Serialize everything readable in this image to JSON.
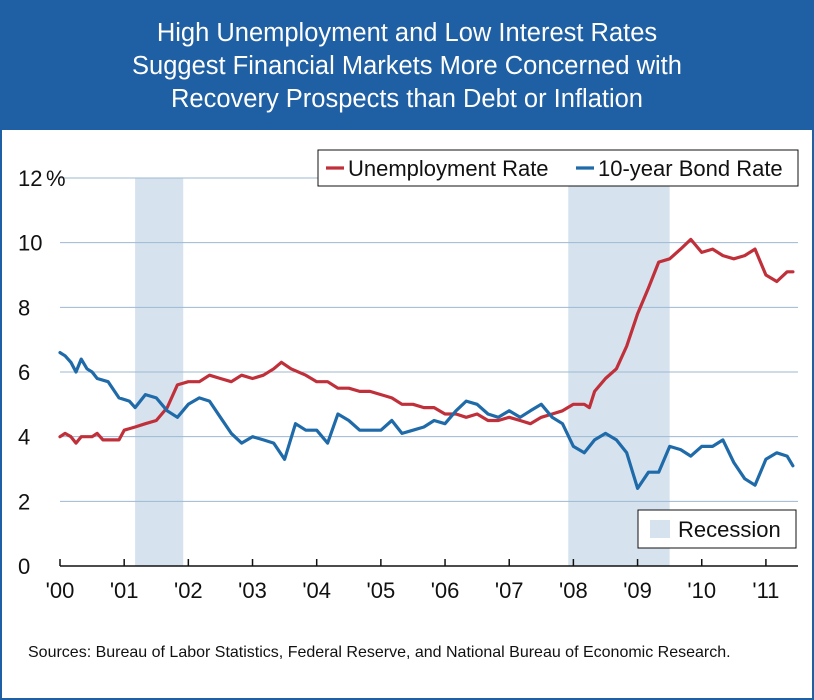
{
  "header": {
    "title_lines": [
      "High Unemployment and Low Interest Rates",
      "Suggest Financial Markets More Concerned with",
      "Recovery Prospects than Debt or Inflation"
    ]
  },
  "colors": {
    "header_bg": "#1f5fa3",
    "unemployment": "#c0303a",
    "bond": "#1f6aa8",
    "recession": "#d6e3ef",
    "grid": "#9db8d2"
  },
  "chart_data": {
    "type": "line",
    "y_unit_label": "%",
    "ylim": [
      0,
      12
    ],
    "y_ticks": [
      0,
      2,
      4,
      6,
      8,
      10,
      12
    ],
    "y_tick_labels": [
      "0",
      "2",
      "4",
      "6",
      "8",
      "10",
      "12"
    ],
    "x_range": [
      2000.0,
      2011.5
    ],
    "x_tick_values": [
      2000,
      2001,
      2002,
      2003,
      2004,
      2005,
      2006,
      2007,
      2008,
      2009,
      2010,
      2011
    ],
    "x_tick_labels": [
      "'00",
      "'01",
      "'02",
      "'03",
      "'04",
      "'05",
      "'06",
      "'07",
      "'08",
      "'09",
      "'10",
      "'11"
    ],
    "grid": "horizontal",
    "legend_position": "top-right",
    "recessions": [
      {
        "start": 2001.17,
        "end": 2001.92
      },
      {
        "start": 2007.92,
        "end": 2009.5
      }
    ],
    "recession_legend_label": "Recession",
    "series": [
      {
        "name": "Unemployment Rate",
        "color_key": "unemployment",
        "points": [
          [
            2000.0,
            4.0
          ],
          [
            2000.08,
            4.1
          ],
          [
            2000.17,
            4.0
          ],
          [
            2000.25,
            3.8
          ],
          [
            2000.33,
            4.0
          ],
          [
            2000.42,
            4.0
          ],
          [
            2000.5,
            4.0
          ],
          [
            2000.58,
            4.1
          ],
          [
            2000.67,
            3.9
          ],
          [
            2000.83,
            3.9
          ],
          [
            2000.92,
            3.9
          ],
          [
            2001.0,
            4.2
          ],
          [
            2001.17,
            4.3
          ],
          [
            2001.33,
            4.4
          ],
          [
            2001.5,
            4.5
          ],
          [
            2001.67,
            4.9
          ],
          [
            2001.83,
            5.6
          ],
          [
            2002.0,
            5.7
          ],
          [
            2002.17,
            5.7
          ],
          [
            2002.33,
            5.9
          ],
          [
            2002.5,
            5.8
          ],
          [
            2002.67,
            5.7
          ],
          [
            2002.83,
            5.9
          ],
          [
            2003.0,
            5.8
          ],
          [
            2003.17,
            5.9
          ],
          [
            2003.33,
            6.1
          ],
          [
            2003.45,
            6.3
          ],
          [
            2003.6,
            6.1
          ],
          [
            2003.83,
            5.9
          ],
          [
            2004.0,
            5.7
          ],
          [
            2004.17,
            5.7
          ],
          [
            2004.33,
            5.5
          ],
          [
            2004.5,
            5.5
          ],
          [
            2004.67,
            5.4
          ],
          [
            2004.83,
            5.4
          ],
          [
            2005.0,
            5.3
          ],
          [
            2005.17,
            5.2
          ],
          [
            2005.33,
            5.0
          ],
          [
            2005.5,
            5.0
          ],
          [
            2005.67,
            4.9
          ],
          [
            2005.83,
            4.9
          ],
          [
            2006.0,
            4.7
          ],
          [
            2006.17,
            4.7
          ],
          [
            2006.33,
            4.6
          ],
          [
            2006.5,
            4.7
          ],
          [
            2006.67,
            4.5
          ],
          [
            2006.83,
            4.5
          ],
          [
            2007.0,
            4.6
          ],
          [
            2007.17,
            4.5
          ],
          [
            2007.33,
            4.4
          ],
          [
            2007.5,
            4.6
          ],
          [
            2007.67,
            4.7
          ],
          [
            2007.83,
            4.8
          ],
          [
            2008.0,
            5.0
          ],
          [
            2008.17,
            5.0
          ],
          [
            2008.25,
            4.9
          ],
          [
            2008.33,
            5.4
          ],
          [
            2008.5,
            5.8
          ],
          [
            2008.67,
            6.1
          ],
          [
            2008.83,
            6.8
          ],
          [
            2009.0,
            7.8
          ],
          [
            2009.17,
            8.6
          ],
          [
            2009.33,
            9.4
          ],
          [
            2009.5,
            9.5
          ],
          [
            2009.67,
            9.8
          ],
          [
            2009.83,
            10.1
          ],
          [
            2010.0,
            9.7
          ],
          [
            2010.17,
            9.8
          ],
          [
            2010.33,
            9.6
          ],
          [
            2010.5,
            9.5
          ],
          [
            2010.67,
            9.6
          ],
          [
            2010.83,
            9.8
          ],
          [
            2011.0,
            9.0
          ],
          [
            2011.17,
            8.8
          ],
          [
            2011.33,
            9.1
          ],
          [
            2011.42,
            9.1
          ]
        ]
      },
      {
        "name": "10-year Bond Rate",
        "color_key": "bond",
        "points": [
          [
            2000.0,
            6.6
          ],
          [
            2000.08,
            6.5
          ],
          [
            2000.17,
            6.3
          ],
          [
            2000.25,
            6.0
          ],
          [
            2000.33,
            6.4
          ],
          [
            2000.42,
            6.1
          ],
          [
            2000.5,
            6.0
          ],
          [
            2000.58,
            5.8
          ],
          [
            2000.75,
            5.7
          ],
          [
            2000.92,
            5.2
          ],
          [
            2001.08,
            5.1
          ],
          [
            2001.17,
            4.9
          ],
          [
            2001.33,
            5.3
          ],
          [
            2001.5,
            5.2
          ],
          [
            2001.67,
            4.8
          ],
          [
            2001.83,
            4.6
          ],
          [
            2002.0,
            5.0
          ],
          [
            2002.17,
            5.2
          ],
          [
            2002.33,
            5.1
          ],
          [
            2002.5,
            4.6
          ],
          [
            2002.67,
            4.1
          ],
          [
            2002.83,
            3.8
          ],
          [
            2003.0,
            4.0
          ],
          [
            2003.17,
            3.9
          ],
          [
            2003.33,
            3.8
          ],
          [
            2003.5,
            3.3
          ],
          [
            2003.67,
            4.4
          ],
          [
            2003.83,
            4.2
          ],
          [
            2004.0,
            4.2
          ],
          [
            2004.17,
            3.8
          ],
          [
            2004.33,
            4.7
          ],
          [
            2004.5,
            4.5
          ],
          [
            2004.67,
            4.2
          ],
          [
            2004.83,
            4.2
          ],
          [
            2005.0,
            4.2
          ],
          [
            2005.17,
            4.5
          ],
          [
            2005.33,
            4.1
          ],
          [
            2005.5,
            4.2
          ],
          [
            2005.67,
            4.3
          ],
          [
            2005.83,
            4.5
          ],
          [
            2006.0,
            4.4
          ],
          [
            2006.17,
            4.8
          ],
          [
            2006.33,
            5.1
          ],
          [
            2006.5,
            5.0
          ],
          [
            2006.67,
            4.7
          ],
          [
            2006.83,
            4.6
          ],
          [
            2007.0,
            4.8
          ],
          [
            2007.17,
            4.6
          ],
          [
            2007.33,
            4.8
          ],
          [
            2007.5,
            5.0
          ],
          [
            2007.67,
            4.6
          ],
          [
            2007.83,
            4.4
          ],
          [
            2008.0,
            3.7
          ],
          [
            2008.17,
            3.5
          ],
          [
            2008.33,
            3.9
          ],
          [
            2008.5,
            4.1
          ],
          [
            2008.67,
            3.9
          ],
          [
            2008.83,
            3.5
          ],
          [
            2009.0,
            2.4
          ],
          [
            2009.17,
            2.9
          ],
          [
            2009.33,
            2.9
          ],
          [
            2009.5,
            3.7
          ],
          [
            2009.67,
            3.6
          ],
          [
            2009.83,
            3.4
          ],
          [
            2010.0,
            3.7
          ],
          [
            2010.17,
            3.7
          ],
          [
            2010.33,
            3.9
          ],
          [
            2010.5,
            3.2
          ],
          [
            2010.67,
            2.7
          ],
          [
            2010.83,
            2.5
          ],
          [
            2011.0,
            3.3
          ],
          [
            2011.17,
            3.5
          ],
          [
            2011.33,
            3.4
          ],
          [
            2011.42,
            3.1
          ]
        ]
      }
    ]
  },
  "source_text": "Sources: Bureau of Labor Statistics, Federal Reserve, and National Bureau of Economic Research."
}
